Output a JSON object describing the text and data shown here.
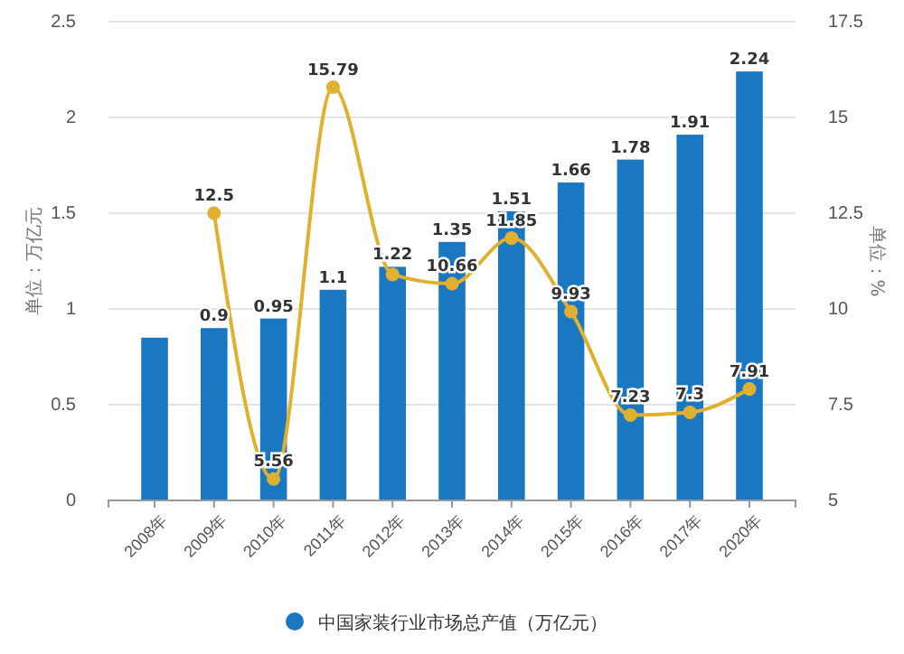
{
  "chart_data": {
    "type": "bar",
    "categories": [
      "2008年",
      "2009年",
      "2010年",
      "2011年",
      "2012年",
      "2013年",
      "2014年",
      "2015年",
      "2016年",
      "2017年",
      "2020年"
    ],
    "ylabel": "单位：万亿元",
    "y2label": "单位：%",
    "series": [
      {
        "name": "中国家装行业市场总产值（万亿元）",
        "color": "#1a78c2",
        "values": [
          0.85,
          0.9,
          0.95,
          1.1,
          1.22,
          1.35,
          1.51,
          1.66,
          1.78,
          1.91,
          2.24
        ],
        "value_labels": [
          null,
          "0.9",
          "0.95",
          "1.1",
          "1.22",
          "1.35",
          "1.51",
          "1.66",
          "1.78",
          "1.91",
          "2.24"
        ]
      },
      {
        "type": "line",
        "axis": "y2",
        "color": "#e0b030",
        "values": [
          null,
          12.5,
          5.56,
          15.79,
          10.9,
          10.66,
          11.85,
          9.93,
          7.23,
          7.3,
          7.91
        ],
        "value_labels": [
          null,
          "12.5",
          "5.56",
          "15.79",
          null,
          "10.66",
          "11.85",
          "9.93",
          "7.23",
          "7.3",
          "7.91"
        ]
      }
    ],
    "ylim": [
      0,
      2.5
    ],
    "yticks": [
      0,
      0.5,
      1,
      1.5,
      2,
      2.5
    ],
    "y2lim": [
      5,
      17.5
    ],
    "y2ticks": [
      5,
      7.5,
      10,
      12.5,
      15,
      17.5
    ],
    "grid": "y",
    "legend": "bottom",
    "marker": "circle"
  }
}
